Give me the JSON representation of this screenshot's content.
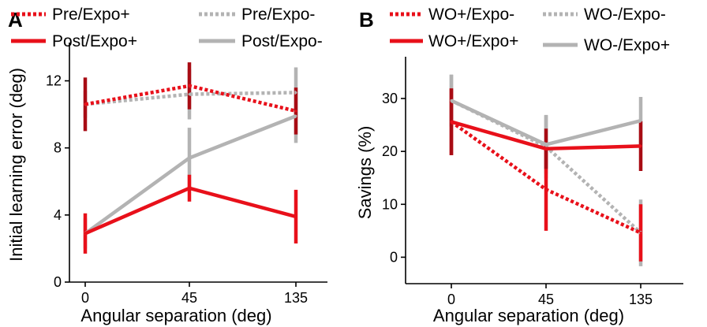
{
  "chart_data": [
    {
      "panel_label": "A",
      "type": "line",
      "x_positions": [
        0,
        1,
        2
      ],
      "x_tick_labels": [
        "0",
        "45",
        "135"
      ],
      "xlabel": "Angular separation (deg)",
      "ylabel": "Initial learning error (deg)",
      "ylim": [
        0,
        14
      ],
      "yticks": [
        0,
        4,
        8,
        12
      ],
      "y_tick_labels": [
        "0",
        "4",
        "8",
        "12"
      ],
      "grid": false,
      "legend_position": "top",
      "series": [
        {
          "name": "Pre/Expo+",
          "color": "#e8101a",
          "err_color": "#a80c14",
          "style": "dotted",
          "y": [
            10.6,
            11.7,
            10.2
          ],
          "err": [
            1.6,
            1.4,
            1.4
          ]
        },
        {
          "name": "Pre/Expo-",
          "color": "#b3b3b3",
          "err_color": "#b3b3b3",
          "style": "dotted",
          "y": [
            10.6,
            11.2,
            11.3
          ],
          "err": [
            0.8,
            1.5,
            1.5
          ]
        },
        {
          "name": "Post/Expo+",
          "color": "#e8101a",
          "err_color": "#e8101a",
          "style": "solid",
          "y": [
            2.9,
            5.6,
            3.9
          ],
          "err": [
            1.2,
            0.8,
            1.6
          ]
        },
        {
          "name": "Post/Expo-",
          "color": "#b3b3b3",
          "err_color": "#b3b3b3",
          "style": "solid",
          "y": [
            2.9,
            7.4,
            9.9
          ],
          "err": [
            0.9,
            1.8,
            1.6
          ]
        }
      ]
    },
    {
      "panel_label": "B",
      "type": "line",
      "x_positions": [
        0,
        1,
        2
      ],
      "x_tick_labels": [
        "0",
        "45",
        "135"
      ],
      "xlabel": "Angular separation (deg)",
      "ylabel": "Savings (%)",
      "ylim": [
        -5,
        37
      ],
      "yticks": [
        0,
        10,
        20,
        30
      ],
      "y_tick_labels": [
        "0",
        "10",
        "20",
        "30"
      ],
      "grid": false,
      "legend_position": "top",
      "series": [
        {
          "name": "WO+/Expo-",
          "color": "#e8101a",
          "err_color": "#e8101a",
          "style": "dotted",
          "y": [
            25.6,
            12.8,
            4.6
          ],
          "err": [
            6.3,
            7.8,
            5.4
          ]
        },
        {
          "name": "WO-/Expo-",
          "color": "#b3b3b3",
          "err_color": "#b3b3b3",
          "style": "dotted",
          "y": [
            29.6,
            20.9,
            4.6
          ],
          "err": [
            4.9,
            6.0,
            6.3
          ]
        },
        {
          "name": "WO+/Expo+",
          "color": "#e8101a",
          "err_color": "#a80c14",
          "style": "solid",
          "y": [
            25.6,
            20.5,
            21.0
          ],
          "err": [
            6.3,
            3.8,
            4.7
          ]
        },
        {
          "name": "WO-/Expo+",
          "color": "#b3b3b3",
          "err_color": "#b3b3b3",
          "style": "solid",
          "y": [
            29.6,
            21.3,
            25.8
          ],
          "err": [
            4.9,
            5.5,
            4.5
          ]
        }
      ]
    }
  ]
}
